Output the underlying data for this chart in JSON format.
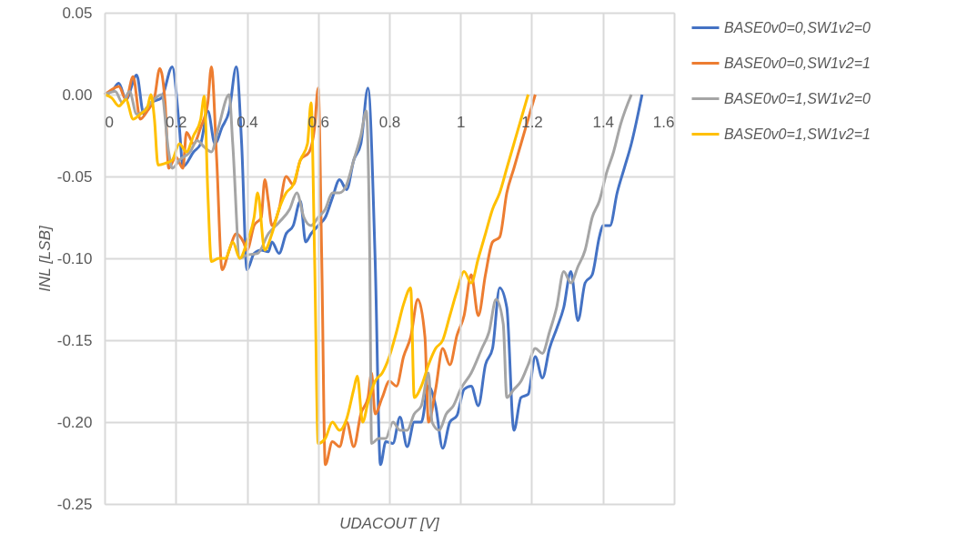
{
  "chart_data": {
    "type": "line",
    "xlabel": "UDACOUT [V]",
    "ylabel": "INL [LSB]",
    "xlim": [
      0,
      1.6
    ],
    "xticks": [
      0,
      0.2,
      0.4,
      0.6,
      0.8,
      1,
      1.2,
      1.4,
      1.6
    ],
    "ylim": [
      -0.25,
      0.05
    ],
    "yticks": [
      {
        "value": -0.25,
        "label": "-0.25"
      },
      {
        "value": -0.2,
        "label": "-0.20"
      },
      {
        "value": -0.15,
        "label": "-0.15"
      },
      {
        "value": -0.1,
        "label": "-0.10"
      },
      {
        "value": -0.05,
        "label": "-0.05"
      },
      {
        "value": 0,
        "label": "0.00"
      },
      {
        "value": 0.05,
        "label": "0.05"
      }
    ],
    "grid": true,
    "legend": "right",
    "marker": "none",
    "line_style": "solid",
    "series": [
      {
        "name": "BASE0v0=0,SW1v2=0",
        "color": "#4472c4",
        "x": [
          0,
          0.02,
          0.04,
          0.06,
          0.09,
          0.11,
          0.13,
          0.16,
          0.19,
          0.21,
          0.22,
          0.25,
          0.27,
          0.29,
          0.31,
          0.33,
          0.35,
          0.37,
          0.385,
          0.4,
          0.42,
          0.44,
          0.46,
          0.47,
          0.49,
          0.51,
          0.53,
          0.55,
          0.565,
          0.58,
          0.6,
          0.62,
          0.64,
          0.66,
          0.68,
          0.7,
          0.72,
          0.74,
          0.76,
          0.775,
          0.79,
          0.81,
          0.83,
          0.85,
          0.87,
          0.89,
          0.91,
          0.93,
          0.95,
          0.97,
          0.99,
          1.01,
          1.03,
          1.05,
          1.07,
          1.09,
          1.11,
          1.13,
          1.15,
          1.17,
          1.19,
          1.21,
          1.23,
          1.25,
          1.27,
          1.29,
          1.31,
          1.33,
          1.35,
          1.37,
          1.39,
          1.4,
          1.42,
          1.44,
          1.46,
          1.48,
          1.51
        ],
        "values": [
          0,
          0.002,
          0.007,
          -0.003,
          0.012,
          -0.012,
          -0.005,
          -0.002,
          0.017,
          -0.02,
          -0.044,
          -0.035,
          -0.03,
          -0.01,
          -0.03,
          -0.02,
          -0.01,
          0.017,
          -0.03,
          -0.107,
          -0.097,
          -0.095,
          -0.096,
          -0.09,
          -0.097,
          -0.085,
          -0.08,
          -0.065,
          -0.09,
          -0.085,
          -0.08,
          -0.075,
          -0.063,
          -0.052,
          -0.058,
          -0.04,
          -0.03,
          0.004,
          -0.1,
          -0.226,
          -0.212,
          -0.213,
          -0.197,
          -0.215,
          -0.2,
          -0.2,
          -0.178,
          -0.19,
          -0.216,
          -0.2,
          -0.196,
          -0.18,
          -0.178,
          -0.19,
          -0.165,
          -0.155,
          -0.118,
          -0.13,
          -0.205,
          -0.185,
          -0.183,
          -0.16,
          -0.173,
          -0.155,
          -0.143,
          -0.13,
          -0.108,
          -0.138,
          -0.115,
          -0.11,
          -0.087,
          -0.08,
          -0.08,
          -0.06,
          -0.045,
          -0.03,
          0
        ]
      },
      {
        "name": "BASE0v0=0,SW1v2=1",
        "color": "#ed7d31",
        "x": [
          0,
          0.02,
          0.04,
          0.06,
          0.08,
          0.1,
          0.12,
          0.14,
          0.155,
          0.17,
          0.18,
          0.2,
          0.22,
          0.23,
          0.25,
          0.27,
          0.29,
          0.3,
          0.315,
          0.33,
          0.35,
          0.37,
          0.39,
          0.4,
          0.42,
          0.44,
          0.45,
          0.46,
          0.47,
          0.49,
          0.51,
          0.53,
          0.55,
          0.575,
          0.59,
          0.6,
          0.61,
          0.62,
          0.64,
          0.66,
          0.68,
          0.7,
          0.72,
          0.74,
          0.75,
          0.76,
          0.78,
          0.8,
          0.82,
          0.84,
          0.86,
          0.88,
          0.9,
          0.91,
          0.93,
          0.95,
          0.97,
          0.99,
          1.01,
          1.03,
          1.05,
          1.07,
          1.09,
          1.11,
          1.13,
          1.15,
          1.17,
          1.21
        ],
        "values": [
          0,
          0.003,
          0.005,
          -0.003,
          0.011,
          -0.015,
          -0.01,
          -0.002,
          0.016,
          -0.005,
          -0.045,
          -0.038,
          -0.045,
          -0.023,
          -0.03,
          -0.02,
          -0.005,
          0.017,
          -0.04,
          -0.107,
          -0.095,
          -0.085,
          -0.09,
          -0.095,
          -0.08,
          -0.075,
          -0.052,
          -0.065,
          -0.08,
          -0.07,
          -0.05,
          -0.055,
          -0.04,
          -0.035,
          -0.02,
          0.004,
          -0.1,
          -0.226,
          -0.212,
          -0.215,
          -0.2,
          -0.215,
          -0.195,
          -0.185,
          -0.17,
          -0.195,
          -0.185,
          -0.175,
          -0.178,
          -0.16,
          -0.148,
          -0.125,
          -0.148,
          -0.2,
          -0.18,
          -0.155,
          -0.165,
          -0.147,
          -0.135,
          -0.11,
          -0.135,
          -0.11,
          -0.09,
          -0.087,
          -0.06,
          -0.045,
          -0.03,
          0
        ]
      },
      {
        "name": "BASE0v0=1,SW1v2=0",
        "color": "#a5a5a5",
        "x": [
          0,
          0.03,
          0.05,
          0.07,
          0.09,
          0.11,
          0.13,
          0.16,
          0.18,
          0.19,
          0.21,
          0.24,
          0.26,
          0.28,
          0.3,
          0.32,
          0.35,
          0.36,
          0.38,
          0.4,
          0.43,
          0.46,
          0.49,
          0.52,
          0.54,
          0.56,
          0.58,
          0.6,
          0.62,
          0.64,
          0.66,
          0.68,
          0.7,
          0.72,
          0.735,
          0.745,
          0.75,
          0.77,
          0.79,
          0.81,
          0.83,
          0.85,
          0.87,
          0.89,
          0.91,
          0.92,
          0.94,
          0.96,
          0.98,
          1,
          1.03,
          1.06,
          1.08,
          1.1,
          1.12,
          1.13,
          1.15,
          1.17,
          1.19,
          1.21,
          1.23,
          1.25,
          1.27,
          1.29,
          1.31,
          1.33,
          1.35,
          1.37,
          1.39,
          1.41,
          1.43,
          1.45,
          1.48
        ],
        "values": [
          0,
          0.002,
          -0.005,
          0.002,
          -0.012,
          -0.01,
          -0.005,
          0,
          -0.035,
          -0.045,
          -0.04,
          -0.035,
          -0.028,
          -0.032,
          -0.035,
          -0.02,
          0,
          -0.03,
          -0.1,
          -0.098,
          -0.097,
          -0.085,
          -0.078,
          -0.07,
          -0.06,
          -0.075,
          -0.08,
          -0.075,
          -0.07,
          -0.06,
          -0.06,
          -0.055,
          -0.04,
          -0.025,
          -0.01,
          -0.1,
          -0.213,
          -0.21,
          -0.21,
          -0.2,
          -0.205,
          -0.205,
          -0.195,
          -0.19,
          -0.17,
          -0.2,
          -0.205,
          -0.195,
          -0.19,
          -0.18,
          -0.17,
          -0.155,
          -0.145,
          -0.125,
          -0.14,
          -0.185,
          -0.18,
          -0.175,
          -0.165,
          -0.155,
          -0.158,
          -0.145,
          -0.13,
          -0.108,
          -0.115,
          -0.105,
          -0.095,
          -0.075,
          -0.065,
          -0.048,
          -0.035,
          -0.018,
          0
        ]
      },
      {
        "name": "BASE0v0=1,SW1v2=1",
        "color": "#ffc000",
        "x": [
          0,
          0.02,
          0.04,
          0.06,
          0.08,
          0.1,
          0.12,
          0.13,
          0.14,
          0.15,
          0.17,
          0.19,
          0.21,
          0.23,
          0.25,
          0.27,
          0.28,
          0.29,
          0.3,
          0.32,
          0.34,
          0.36,
          0.38,
          0.4,
          0.42,
          0.43,
          0.45,
          0.47,
          0.49,
          0.51,
          0.53,
          0.55,
          0.57,
          0.58,
          0.59,
          0.6,
          0.62,
          0.64,
          0.66,
          0.68,
          0.7,
          0.71,
          0.725,
          0.74,
          0.76,
          0.78,
          0.8,
          0.82,
          0.84,
          0.86,
          0.87,
          0.89,
          0.91,
          0.93,
          0.95,
          0.97,
          0.99,
          1.01,
          1.03,
          1.05,
          1.07,
          1.09,
          1.11,
          1.13,
          1.15,
          1.19
        ],
        "values": [
          0,
          -0.002,
          -0.007,
          -0.003,
          -0.015,
          -0.012,
          -0.008,
          0,
          -0.015,
          -0.043,
          -0.042,
          -0.04,
          -0.03,
          -0.035,
          -0.025,
          -0.015,
          -0.001,
          -0.06,
          -0.102,
          -0.1,
          -0.1,
          -0.09,
          -0.1,
          -0.09,
          -0.075,
          -0.06,
          -0.095,
          -0.085,
          -0.07,
          -0.06,
          -0.055,
          -0.04,
          -0.03,
          -0.005,
          -0.1,
          -0.213,
          -0.21,
          -0.2,
          -0.205,
          -0.198,
          -0.18,
          -0.172,
          -0.2,
          -0.188,
          -0.175,
          -0.17,
          -0.16,
          -0.145,
          -0.128,
          -0.118,
          -0.185,
          -0.178,
          -0.165,
          -0.155,
          -0.15,
          -0.135,
          -0.12,
          -0.108,
          -0.115,
          -0.1,
          -0.085,
          -0.07,
          -0.06,
          -0.045,
          -0.03,
          0
        ]
      }
    ]
  }
}
